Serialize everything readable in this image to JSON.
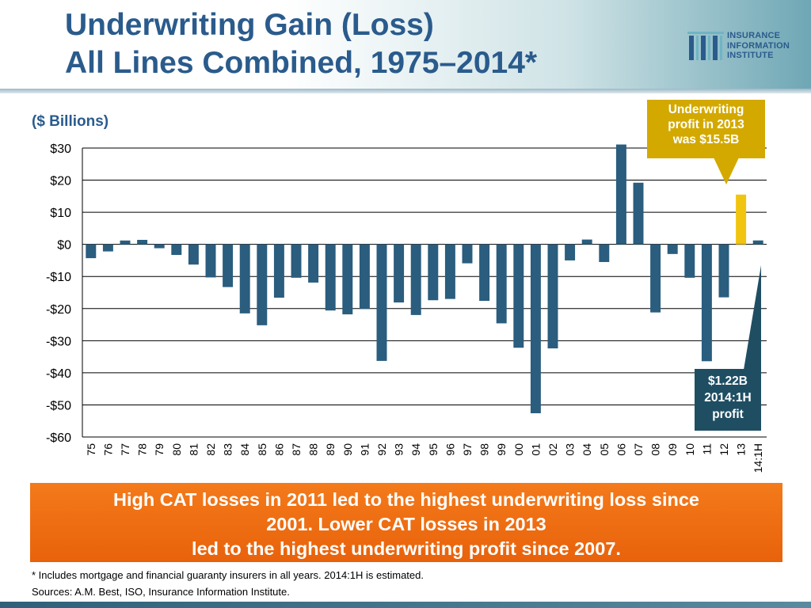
{
  "header": {
    "title_line1": "Underwriting Gain (Loss)",
    "title_line2": "All Lines Combined, 1975–2014*"
  },
  "logo": {
    "line1": "INSURANCE",
    "line2": "INFORMATION",
    "line3": "INSTITUTE"
  },
  "units_label": "($ Billions)",
  "callouts": {
    "top": [
      "Underwriting",
      "profit in 2013",
      "was $15.5B"
    ],
    "bottom": [
      "$1.22B",
      "2014:1H",
      "profit"
    ]
  },
  "banner": {
    "line1": "High CAT losses in 2011 led to the highest underwriting loss since",
    "line2": "2001. Lower CAT losses in 2013",
    "line3": "led to the highest underwriting profit since 2007."
  },
  "footnote": {
    "note": "* Includes mortgage and financial guaranty insurers in all years. 2014:1H is estimated.",
    "sources": "Sources: A.M. Best, ISO, Insurance Information Institute."
  },
  "colors": {
    "bar": "#2a5d7e",
    "highlight": "#f1c40f",
    "title": "#2a5b8c",
    "banner": "#ee6c12",
    "callout_top": "#d3a900",
    "callout_bottom": "#1f4e63"
  },
  "chart_data": {
    "type": "bar",
    "title": "Underwriting Gain (Loss) All Lines Combined, 1975–2014*",
    "ylabel": "($ Billions)",
    "ylim": [
      -60,
      30
    ],
    "yticks": [
      30,
      20,
      10,
      0,
      -10,
      -20,
      -30,
      -40,
      -50,
      -60
    ],
    "ytick_labels": [
      "$30",
      "$20",
      "$10",
      "$0",
      "-$10",
      "-$20",
      "-$30",
      "-$40",
      "-$50",
      "-$60"
    ],
    "grid": true,
    "categories": [
      "75",
      "76",
      "77",
      "78",
      "79",
      "80",
      "81",
      "82",
      "83",
      "84",
      "85",
      "86",
      "87",
      "88",
      "89",
      "90",
      "91",
      "92",
      "93",
      "94",
      "95",
      "96",
      "97",
      "98",
      "99",
      "00",
      "01",
      "02",
      "03",
      "04",
      "05",
      "06",
      "07",
      "08",
      "09",
      "10",
      "11",
      "12",
      "13",
      "14:1H"
    ],
    "values": [
      -4.3,
      -2.2,
      1.2,
      1.4,
      -1.2,
      -3.3,
      -6.3,
      -10.3,
      -13.3,
      -21.5,
      -25.2,
      -16.6,
      -10.4,
      -11.9,
      -20.6,
      -21.8,
      -20.1,
      -36.3,
      -18.1,
      -22.0,
      -17.4,
      -17.0,
      -5.9,
      -17.6,
      -24.6,
      -32.2,
      -52.6,
      -32.4,
      -5.0,
      1.5,
      -5.5,
      31.1,
      19.2,
      -21.2,
      -3.0,
      -10.4,
      -36.4,
      -16.5,
      15.5,
      1.22
    ],
    "highlight_index": 38
  }
}
